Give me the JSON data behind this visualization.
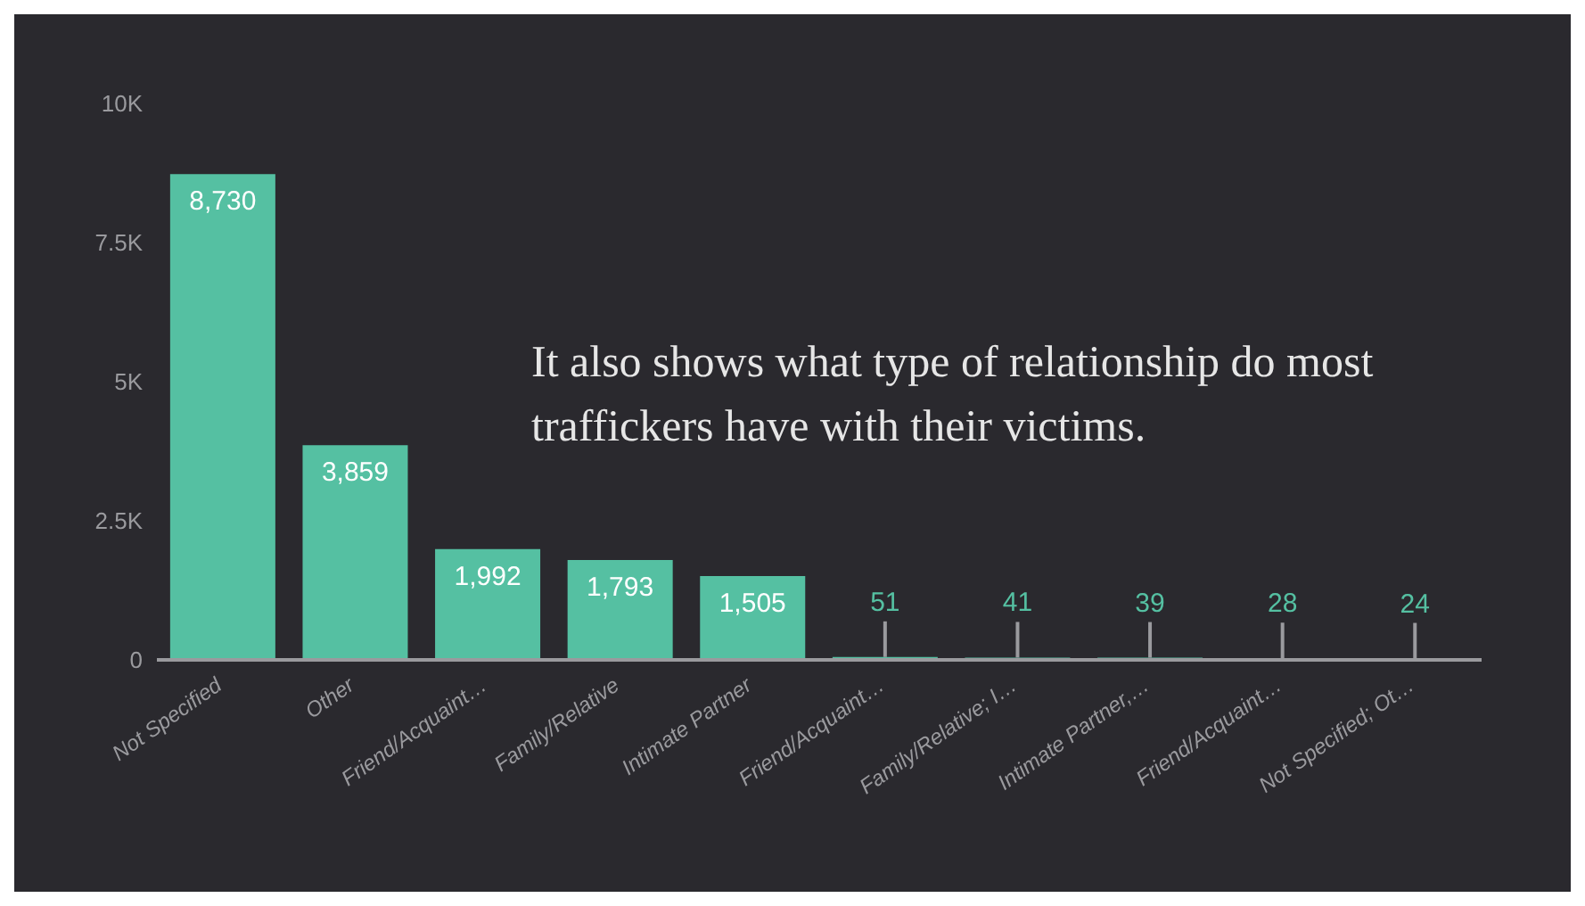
{
  "chart_data": {
    "type": "bar",
    "categories": [
      "Not Specified",
      "Other",
      "Friend/Acquaint…",
      "Family/Relative",
      "Intimate Partner",
      "Friend/Acquaint…",
      "Family/Relative; I…",
      "Intimate Partner,…",
      "Friend/Acquaint…",
      "Not Specified; Ot…"
    ],
    "values": [
      8730,
      3859,
      1992,
      1793,
      1505,
      51,
      41,
      39,
      28,
      24
    ],
    "value_labels": [
      "8,730",
      "3,859",
      "1,992",
      "1,793",
      "1,505",
      "51",
      "41",
      "39",
      "28",
      "24"
    ],
    "color": "#55c0a2",
    "ylim": [
      0,
      10000
    ],
    "yticks": [
      {
        "value": 0,
        "label": "0"
      },
      {
        "value": 2500,
        "label": "2.5K"
      },
      {
        "value": 5000,
        "label": "5K"
      },
      {
        "value": 7500,
        "label": "7.5K"
      },
      {
        "value": 10000,
        "label": "10K"
      }
    ],
    "grid": false,
    "legend": false,
    "annotations": [
      "It also shows what type of relationship do most traffickers have with their victims."
    ]
  }
}
